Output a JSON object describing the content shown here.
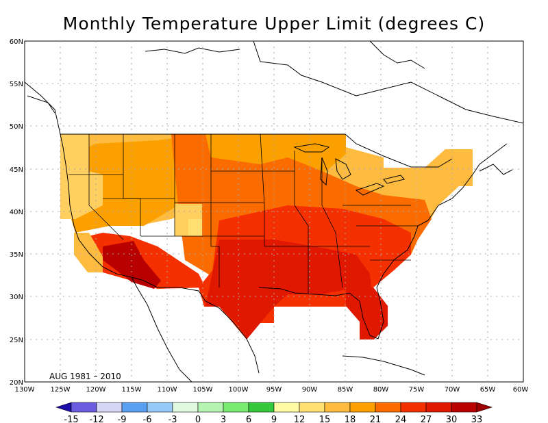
{
  "title": "Monthly Temperature Upper Limit (degrees C)",
  "period": "AUG 1981 – 2010",
  "x_ticks": [
    "130W",
    "125W",
    "120W",
    "115W",
    "110W",
    "105W",
    "100W",
    "95W",
    "90W",
    "85W",
    "80W",
    "75W",
    "70W",
    "65W",
    "60W"
  ],
  "y_ticks": [
    "60N",
    "55N",
    "50N",
    "45N",
    "40N",
    "35N",
    "30N",
    "25N",
    "20N"
  ],
  "colorbar": {
    "labels": [
      "-15",
      "-12",
      "-9",
      "-6",
      "-3",
      "0",
      "3",
      "6",
      "9",
      "12",
      "15",
      "18",
      "21",
      "24",
      "27",
      "30",
      "33"
    ],
    "colors": [
      "#1c0ca8",
      "#6a5cde",
      "#d6d6f6",
      "#5aa0f0",
      "#98caf8",
      "#e0fae0",
      "#b4f4b0",
      "#78ec70",
      "#36c83c",
      "#fffaa4",
      "#ffe070",
      "#fdbc40",
      "#fca000",
      "#fb6c00",
      "#f53000",
      "#e01800",
      "#b80000",
      "#9c0000"
    ]
  },
  "grid": "dotted",
  "colors": {
    "background": "#ffffff",
    "frame": "#000000",
    "grid_line": "#aaaaaa"
  }
}
